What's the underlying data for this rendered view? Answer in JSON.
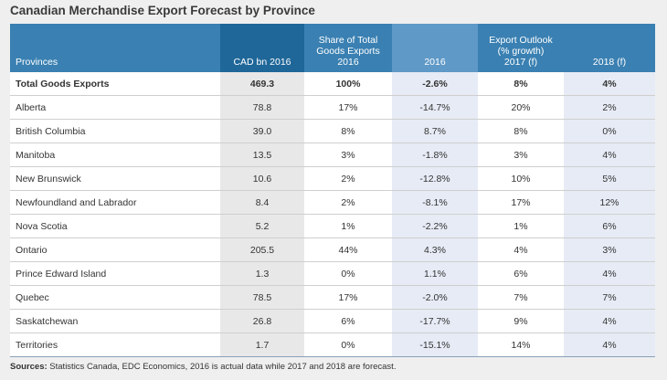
{
  "title": "Canadian Merchandise Export Forecast by Province",
  "headers": {
    "provinces": "Provinces",
    "cad": "CAD bn 2016",
    "share_top1": "Share of Total",
    "share_top2": "Goods Exports",
    "share_year": "2016",
    "y2016": "2016",
    "outlook_top1": "Export Outlook",
    "outlook_top2": "(% growth)",
    "y2017": "2017 (f)",
    "y2018": "2018 (f)"
  },
  "total_row": [
    "Total Goods Exports",
    "469.3",
    "100%",
    "-2.6%",
    "8%",
    "4%"
  ],
  "rows": [
    [
      "Alberta",
      "78.8",
      "17%",
      "-14.7%",
      "20%",
      "2%"
    ],
    [
      "British Columbia",
      "39.0",
      "8%",
      "8.7%",
      "8%",
      "0%"
    ],
    [
      "Manitoba",
      "13.5",
      "3%",
      "-1.8%",
      "3%",
      "4%"
    ],
    [
      "New Brunswick",
      "10.6",
      "2%",
      "-12.8%",
      "10%",
      "5%"
    ],
    [
      "Newfoundland and Labrador",
      "8.4",
      "2%",
      "-8.1%",
      "17%",
      "12%"
    ],
    [
      "Nova Scotia",
      "5.2",
      "1%",
      "-2.2%",
      "1%",
      "6%"
    ],
    [
      "Ontario",
      "205.5",
      "44%",
      "4.3%",
      "4%",
      "3%"
    ],
    [
      "Prince Edward Island",
      "1.3",
      "0%",
      "1.1%",
      "6%",
      "4%"
    ],
    [
      "Quebec",
      "78.5",
      "17%",
      "-2.0%",
      "7%",
      "7%"
    ],
    [
      "Saskatchewan",
      "26.8",
      "6%",
      "-17.7%",
      "9%",
      "4%"
    ],
    [
      "Territories",
      "1.7",
      "0%",
      "-15.1%",
      "14%",
      "4%"
    ]
  ],
  "sources_label": "Sources:",
  "sources_text": "Statistics Canada, EDC Economics, 2016 is actual data while 2017 and 2018 are forecast."
}
